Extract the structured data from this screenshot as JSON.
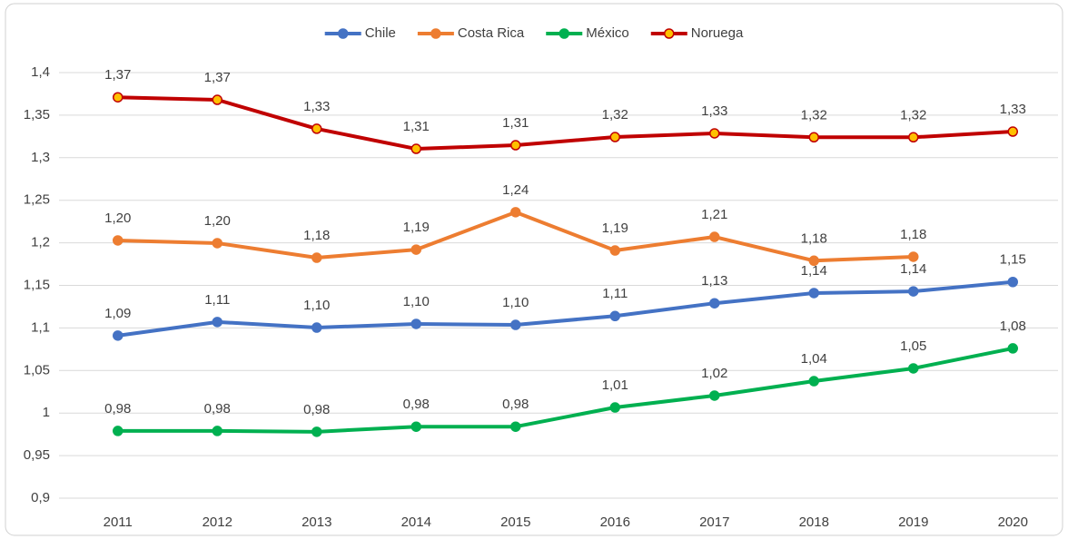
{
  "chart_data": {
    "type": "line",
    "categories": [
      "2011",
      "2012",
      "2013",
      "2014",
      "2015",
      "2016",
      "2017",
      "2018",
      "2019",
      "2020"
    ],
    "series": [
      {
        "name": "Chile",
        "color": "#4472c4",
        "values": [
          1.091,
          1.107,
          1.1004,
          1.1047,
          1.1036,
          1.114,
          1.129,
          1.141,
          1.143,
          1.154
        ],
        "value_labels": [
          "1,09",
          "1,11",
          "1,10",
          "1,10",
          "1,10",
          "1,11",
          "1,13",
          "1,14",
          "1,14",
          "1,15"
        ]
      },
      {
        "name": "Costa Rica",
        "color": "#ed7d31",
        "values": [
          1.2028,
          1.1996,
          1.1825,
          1.192,
          1.236,
          1.191,
          1.207,
          1.179,
          1.1836,
          null
        ],
        "value_labels": [
          "1,20",
          "1,20",
          "1,18",
          "1,19",
          "1,24",
          "1,19",
          "1,21",
          "1,18",
          "1,18",
          null
        ]
      },
      {
        "name": "México",
        "color": "#00b050",
        "values": [
          0.979,
          0.979,
          0.978,
          0.984,
          0.984,
          1.0066,
          1.0205,
          1.0375,
          1.0525,
          1.076
        ],
        "value_labels": [
          "0,98",
          "0,98",
          "0,98",
          "0,98",
          "0,98",
          "1,01",
          "1,02",
          "1,04",
          "1,05",
          "1,08"
        ]
      },
      {
        "name": "Noruega",
        "color": "#c00000",
        "marker_color": "#ffc000",
        "values": [
          1.371,
          1.368,
          1.334,
          1.3104,
          1.3147,
          1.3243,
          1.3286,
          1.324,
          1.324,
          1.3307
        ],
        "value_labels": [
          "1,37",
          "1,37",
          "1,33",
          "1,31",
          "1,31",
          "1,32",
          "1,33",
          "1,32",
          "1,32",
          "1,33"
        ]
      }
    ],
    "ylim": [
      0.9,
      1.4
    ],
    "yticks": [
      {
        "value": 0.9,
        "label": "0,9"
      },
      {
        "value": 0.95,
        "label": "0,95"
      },
      1,
      {
        "value": 1.05,
        "label": "1,05"
      },
      {
        "value": 1.1,
        "label": "1,1"
      },
      {
        "value": 1.15,
        "label": "1,15"
      },
      {
        "value": 1.2,
        "label": "1,2"
      },
      {
        "value": 1.25,
        "label": "1,25"
      },
      {
        "value": 1.3,
        "label": "1,3"
      },
      {
        "value": 1.35,
        "label": "1,35"
      },
      {
        "value": 1.4,
        "label": "1,4"
      }
    ],
    "grid": true,
    "legend": "top"
  }
}
